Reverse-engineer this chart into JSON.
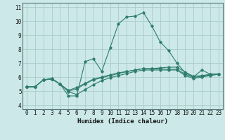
{
  "title": "",
  "xlabel": "Humidex (Indice chaleur)",
  "ylabel": "",
  "bg_color": "#cce8e8",
  "line_color": "#2e7d6e",
  "grid_color": "#aacccc",
  "xlim": [
    -0.5,
    23.5
  ],
  "ylim": [
    3.7,
    11.3
  ],
  "yticks": [
    4,
    5,
    6,
    7,
    8,
    9,
    10,
    11
  ],
  "xticks": [
    0,
    1,
    2,
    3,
    4,
    5,
    6,
    7,
    8,
    9,
    10,
    11,
    12,
    13,
    14,
    15,
    16,
    17,
    18,
    19,
    20,
    21,
    22,
    23
  ],
  "lines": [
    {
      "x": [
        0,
        1,
        2,
        3,
        4,
        5,
        6,
        7,
        8,
        9,
        10,
        11,
        12,
        13,
        14,
        15,
        16,
        17,
        18,
        19,
        20,
        21,
        22,
        23
      ],
      "y": [
        5.3,
        5.3,
        5.8,
        5.9,
        5.5,
        4.65,
        4.65,
        7.1,
        7.3,
        6.4,
        8.1,
        9.8,
        10.3,
        10.35,
        10.6,
        9.65,
        8.5,
        7.9,
        7.0,
        6.3,
        6.0,
        6.5,
        6.2,
        6.2
      ]
    },
    {
      "x": [
        0,
        1,
        2,
        3,
        4,
        5,
        6,
        7,
        8,
        9,
        10,
        11,
        12,
        13,
        14,
        15,
        16,
        17,
        18,
        19,
        20,
        21,
        22,
        23
      ],
      "y": [
        5.3,
        5.3,
        5.8,
        5.85,
        5.5,
        5.05,
        5.25,
        5.55,
        5.85,
        6.0,
        6.15,
        6.3,
        6.4,
        6.5,
        6.6,
        6.6,
        6.65,
        6.7,
        6.7,
        6.35,
        6.05,
        6.1,
        6.2,
        6.2
      ]
    },
    {
      "x": [
        0,
        1,
        2,
        3,
        4,
        5,
        6,
        7,
        8,
        9,
        10,
        11,
        12,
        13,
        14,
        15,
        16,
        17,
        18,
        19,
        20,
        21,
        22,
        23
      ],
      "y": [
        5.3,
        5.3,
        5.8,
        5.85,
        5.5,
        4.95,
        4.75,
        5.1,
        5.45,
        5.75,
        5.95,
        6.1,
        6.25,
        6.4,
        6.5,
        6.5,
        6.5,
        6.5,
        6.5,
        6.1,
        5.9,
        6.0,
        6.1,
        6.2
      ]
    },
    {
      "x": [
        0,
        1,
        2,
        3,
        4,
        5,
        6,
        7,
        8,
        9,
        10,
        11,
        12,
        13,
        14,
        15,
        16,
        17,
        18,
        19,
        20,
        21,
        22,
        23
      ],
      "y": [
        5.3,
        5.3,
        5.8,
        5.85,
        5.5,
        5.0,
        5.15,
        5.5,
        5.8,
        5.95,
        6.1,
        6.25,
        6.38,
        6.5,
        6.6,
        6.58,
        6.58,
        6.55,
        6.55,
        6.2,
        5.98,
        6.05,
        6.15,
        6.2
      ]
    }
  ]
}
